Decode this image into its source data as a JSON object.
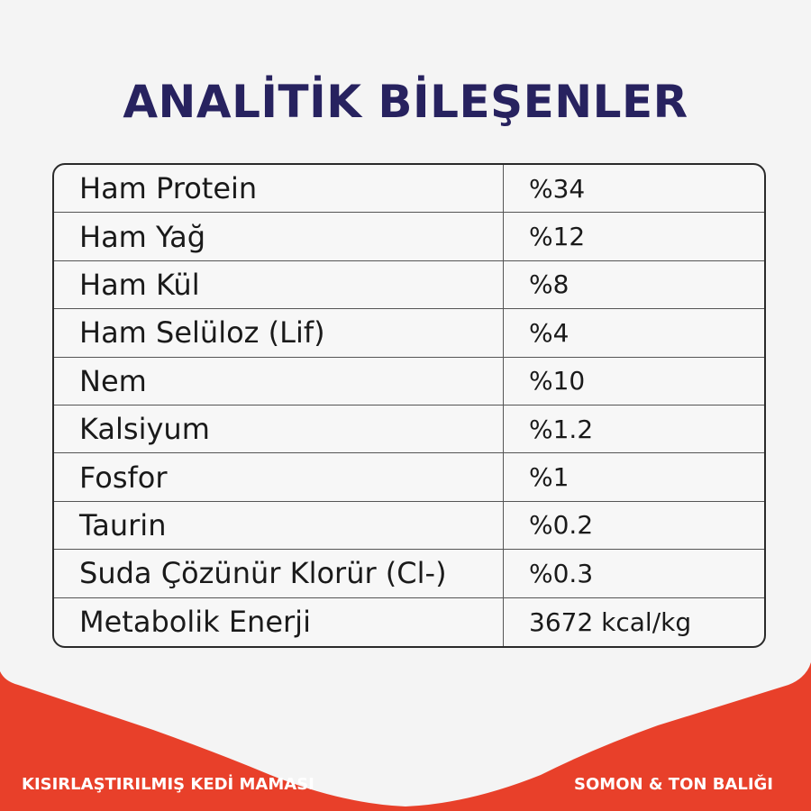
{
  "title": "ANALİTİK BİLEŞENLER",
  "rows": [
    {
      "label": "Ham Protein",
      "value": "%34"
    },
    {
      "label": "Ham Yağ",
      "value": "%12"
    },
    {
      "label": "Ham Kül",
      "value": "%8"
    },
    {
      "label": "Ham Selüloz (Lif)",
      "value": "%4"
    },
    {
      "label": "Nem",
      "value": "%10"
    },
    {
      "label": "Kalsiyum",
      "value": "%1.2"
    },
    {
      "label": "Fosfor",
      "value": "%1"
    },
    {
      "label": "Taurin",
      "value": "%0.2"
    },
    {
      "label": "Suda Çözünür Klorür (Cl-)",
      "value": "%0.3"
    },
    {
      "label": "Metabolik Enerji",
      "value": "3672 kcal/kg"
    }
  ],
  "footer": {
    "left": "KISIRLAŞTIRILMIŞ KEDİ MAMASI",
    "right": "SOMON & TON BALIĞI"
  },
  "colors": {
    "title": "#27225f",
    "banner": "#e8402a",
    "background": "#f4f4f4"
  }
}
